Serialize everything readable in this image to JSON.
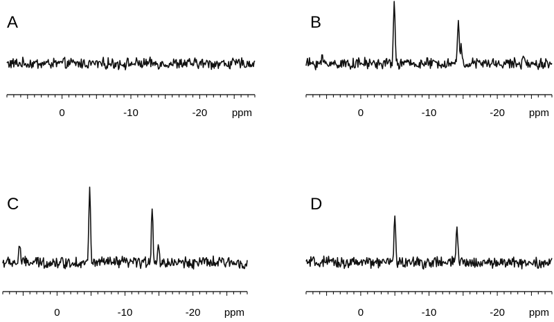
{
  "chart_data": [
    {
      "type": "line",
      "label": "A",
      "axis_unit": "ppm",
      "xlim": [
        8,
        -28
      ],
      "x_ticks": [
        "0",
        "-10",
        "-20"
      ],
      "x_tick_values": [
        0,
        -10,
        -20
      ],
      "y_grid": false,
      "baseline_noise": 0.06,
      "peaks": []
    },
    {
      "type": "line",
      "label": "B",
      "axis_unit": "ppm",
      "xlim": [
        8,
        -28
      ],
      "x_ticks": [
        "0",
        "-10",
        "-20"
      ],
      "x_tick_values": [
        0,
        -10,
        -20
      ],
      "y_grid": false,
      "baseline_noise": 0.06,
      "peaks": [
        {
          "x": 5.6,
          "height": 0.08
        },
        {
          "x": -4.9,
          "height": 0.85
        },
        {
          "x": -14.3,
          "height": 0.63
        },
        {
          "x": -14.7,
          "height": 0.2
        },
        {
          "x": -24.0,
          "height": 0.1
        }
      ]
    },
    {
      "type": "line",
      "label": "C",
      "axis_unit": "ppm",
      "xlim": [
        8,
        -28
      ],
      "x_ticks": [
        "0",
        "-10",
        "-20"
      ],
      "x_tick_values": [
        0,
        -10,
        -20
      ],
      "y_grid": false,
      "baseline_noise": 0.06,
      "peaks": [
        {
          "x": 5.5,
          "height": 0.25
        },
        {
          "x": -4.8,
          "height": 0.95
        },
        {
          "x": -14.0,
          "height": 0.75
        },
        {
          "x": -14.9,
          "height": 0.2
        }
      ]
    },
    {
      "type": "line",
      "label": "D",
      "axis_unit": "ppm",
      "xlim": [
        8,
        -28
      ],
      "x_ticks": [
        "0",
        "-10",
        "-20"
      ],
      "x_tick_values": [
        0,
        -10,
        -20
      ],
      "y_grid": false,
      "baseline_noise": 0.06,
      "peaks": [
        {
          "x": -5.0,
          "height": 0.65
        },
        {
          "x": -14.1,
          "height": 0.48
        }
      ]
    }
  ]
}
